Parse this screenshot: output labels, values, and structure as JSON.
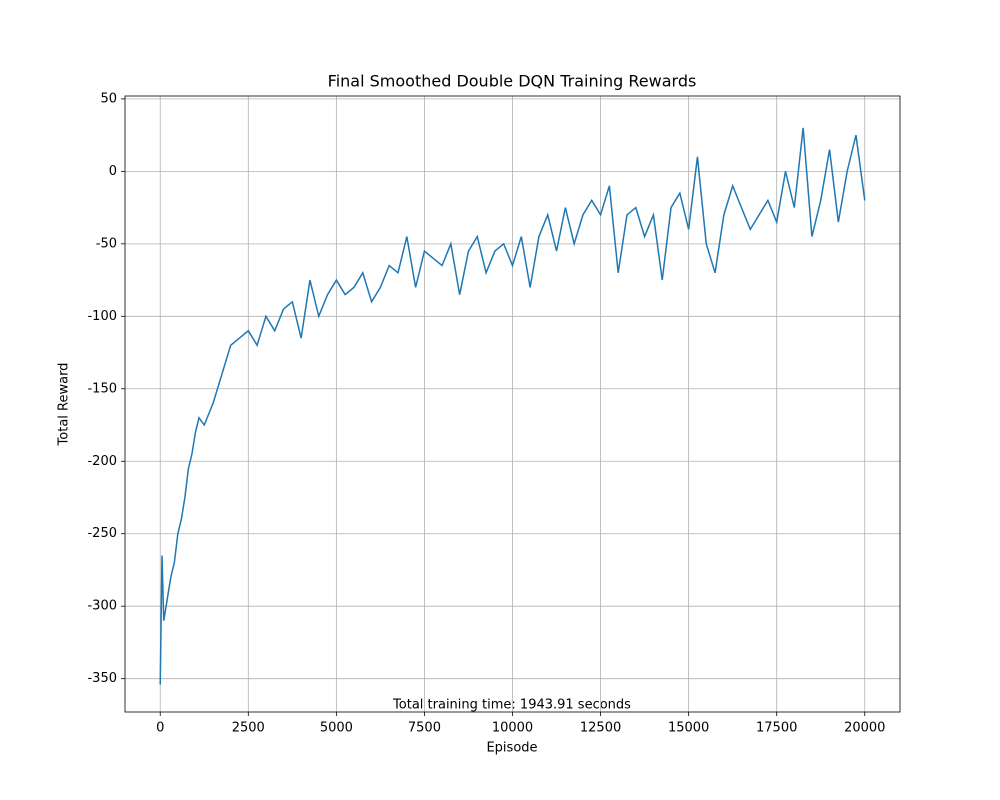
{
  "chart_data": {
    "type": "line",
    "title": "Final Smoothed Double DQN Training Rewards",
    "x_label": "Episode",
    "y_label": "Total Reward",
    "annotation": "Total training time: 1943.91 seconds",
    "grid": true,
    "xlim": [
      -1000,
      21000
    ],
    "ylim": [
      -373,
      52
    ],
    "xticks": [
      0,
      2500,
      5000,
      7500,
      10000,
      12500,
      15000,
      17500,
      20000
    ],
    "yticks": [
      -350,
      -300,
      -250,
      -200,
      -150,
      -100,
      -50,
      0,
      50
    ],
    "x": [
      0,
      50,
      100,
      200,
      300,
      400,
      500,
      600,
      700,
      800,
      900,
      1000,
      1100,
      1250,
      1500,
      1750,
      2000,
      2250,
      2500,
      2750,
      3000,
      3250,
      3500,
      3750,
      4000,
      4250,
      4500,
      4750,
      5000,
      5250,
      5500,
      5750,
      6000,
      6250,
      6500,
      6750,
      7000,
      7250,
      7500,
      7750,
      8000,
      8250,
      8500,
      8750,
      9000,
      9250,
      9500,
      9750,
      10000,
      10250,
      10500,
      10750,
      11000,
      11250,
      11500,
      11750,
      12000,
      12250,
      12500,
      12750,
      13000,
      13250,
      13500,
      13750,
      14000,
      14250,
      14500,
      14750,
      15000,
      15250,
      15500,
      15750,
      16000,
      16250,
      16500,
      16750,
      17000,
      17250,
      17500,
      17750,
      18000,
      18250,
      18500,
      18750,
      19000,
      19250,
      19500,
      19750,
      20000
    ],
    "series": [
      {
        "name": "Smoothed reward",
        "color": "#1f77b4",
        "values": [
          -354,
          -265,
          -310,
          -295,
          -280,
          -270,
          -250,
          -240,
          -225,
          -205,
          -195,
          -180,
          -170,
          -175,
          -160,
          -140,
          -120,
          -115,
          -110,
          -120,
          -100,
          -110,
          -95,
          -90,
          -115,
          -75,
          -100,
          -85,
          -75,
          -85,
          -80,
          -70,
          -90,
          -80,
          -65,
          -70,
          -45,
          -80,
          -55,
          -60,
          -65,
          -50,
          -85,
          -55,
          -45,
          -70,
          -55,
          -50,
          -65,
          -45,
          -80,
          -45,
          -30,
          -55,
          -25,
          -50,
          -30,
          -20,
          -30,
          -10,
          -70,
          -30,
          -25,
          -45,
          -30,
          -75,
          -25,
          -15,
          -40,
          10,
          -50,
          -70,
          -30,
          -10,
          -25,
          -40,
          -30,
          -20,
          -35,
          0,
          -25,
          30,
          -45,
          -20,
          15,
          -35,
          0,
          25,
          -20
        ]
      }
    ]
  }
}
